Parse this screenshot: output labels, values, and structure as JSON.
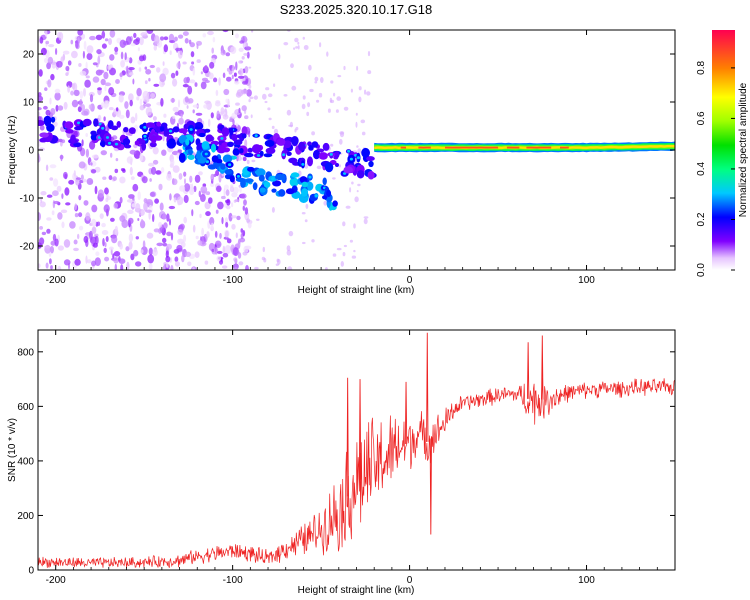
{
  "title": "S233.2025.320.10.17.G18",
  "chart_data": [
    {
      "type": "heatmap",
      "name": "spectrogram",
      "xlabel": "Height of straight line (km)",
      "ylabel": "Frequency (Hz)",
      "xlim": [
        -210,
        150
      ],
      "ylim": [
        -25,
        25
      ],
      "xticks": [
        -200,
        -100,
        0,
        100
      ],
      "yticks": [
        -20,
        -10,
        0,
        10,
        20
      ],
      "colorbar": {
        "label": "Normalized spectral amplitude",
        "range": [
          0,
          0.95
        ],
        "ticks": [
          0.0,
          0.2,
          0.4,
          0.6,
          0.8
        ]
      },
      "features": [
        {
          "desc": "scattered low-amplitude speckle",
          "x_range": [
            -210,
            -100
          ],
          "freq_range": [
            -25,
            25
          ],
          "amplitude": 0.05
        },
        {
          "desc": "purple band, first trace",
          "x": [
            -210,
            -160,
            -120,
            -100,
            -70,
            -45,
            -30,
            -20
          ],
          "freq": [
            4,
            3,
            3,
            2,
            0,
            -2,
            -3,
            -3
          ],
          "amplitude": 0.1
        },
        {
          "desc": "descending branch with blue cores",
          "x": [
            -130,
            -110,
            -95,
            -75,
            -55,
            -40
          ],
          "freq": [
            1,
            -2,
            -5,
            -7,
            -8,
            -10
          ],
          "amplitude": 0.2
        },
        {
          "desc": "merged streak after -20 km",
          "x": [
            -20,
            0,
            50,
            100,
            150
          ],
          "freq": [
            0.5,
            0.5,
            0.5,
            0.5,
            0.8
          ],
          "amplitude": 0.85
        }
      ]
    },
    {
      "type": "line",
      "name": "snr",
      "xlabel": "Height of straight line (km)",
      "ylabel": "SNR (10 * v/v)",
      "xlim": [
        -210,
        150
      ],
      "ylim": [
        0,
        880
      ],
      "xticks": [
        -200,
        -100,
        0,
        100
      ],
      "yticks": [
        0,
        200,
        400,
        600,
        800
      ],
      "color": "#ee2222",
      "series": [
        {
          "name": "SNR",
          "x": [
            -210,
            -180,
            -150,
            -130,
            -120,
            -110,
            -100,
            -90,
            -80,
            -70,
            -60,
            -50,
            -40,
            -30,
            -20,
            -10,
            0,
            5,
            10,
            15,
            20,
            25,
            30,
            40,
            50,
            60,
            70,
            80,
            90,
            100,
            110,
            120,
            130,
            140,
            150
          ],
          "envelope": [
            30,
            25,
            28,
            35,
            50,
            60,
            70,
            60,
            40,
            80,
            110,
            150,
            220,
            320,
            380,
            430,
            470,
            500,
            470,
            500,
            540,
            590,
            610,
            625,
            640,
            645,
            620,
            630,
            650,
            660,
            665,
            665,
            670,
            670,
            670
          ],
          "amplitude": [
            20,
            20,
            20,
            25,
            25,
            30,
            30,
            30,
            30,
            40,
            60,
            80,
            150,
            200,
            180,
            140,
            100,
            90,
            80,
            70,
            50,
            40,
            30,
            30,
            30,
            30,
            90,
            60,
            30,
            30,
            30,
            30,
            30,
            30,
            30
          ]
        }
      ],
      "spikes": [
        {
          "x": 10,
          "y": 870
        },
        {
          "x": 75,
          "y": 860
        },
        {
          "x": 67,
          "y": 835
        },
        {
          "x": -35,
          "y": 705
        },
        {
          "x": -28,
          "y": 700
        },
        {
          "x": -2,
          "y": 690
        },
        {
          "x": 12,
          "y": 130
        }
      ]
    }
  ]
}
